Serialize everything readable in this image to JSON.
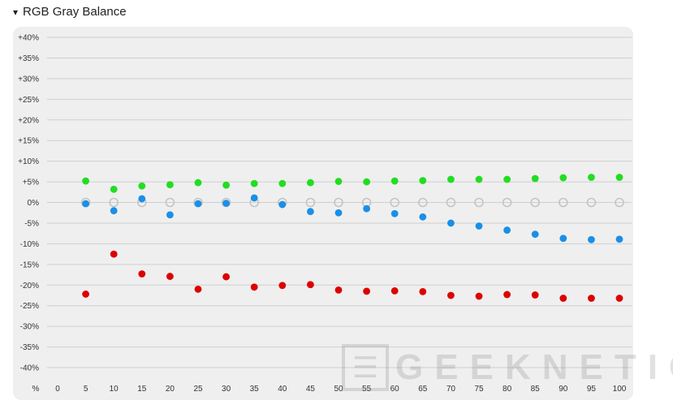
{
  "section": {
    "caret": "▾",
    "title": "RGB Gray Balance"
  },
  "colors": {
    "panel": "#efefef",
    "grid": "#cfcfcf",
    "green": "#22dd22",
    "blue": "#1a8fe8",
    "red": "#dd0000",
    "gray_ring": "#c4c4c4"
  },
  "watermark": {
    "box_glyph": "☰",
    "text": "GEEKNETIC"
  },
  "chart_data": {
    "type": "scatter",
    "title": "RGB Gray Balance",
    "xlabel": "%",
    "ylabel": "",
    "x_axis_start_label": "0",
    "x": [
      5,
      10,
      15,
      20,
      25,
      30,
      35,
      40,
      45,
      50,
      55,
      60,
      65,
      70,
      75,
      80,
      85,
      90,
      95,
      100
    ],
    "x_tick_labels": [
      "%",
      "0",
      "5",
      "10",
      "15",
      "20",
      "25",
      "30",
      "35",
      "40",
      "45",
      "50",
      "55",
      "60",
      "65",
      "70",
      "75",
      "80",
      "85",
      "90",
      "95",
      "100"
    ],
    "ylim": [
      -40,
      40
    ],
    "y_ticks": [
      40,
      35,
      30,
      25,
      20,
      15,
      10,
      5,
      0,
      -5,
      -10,
      -15,
      -20,
      -25,
      -30,
      -35,
      -40
    ],
    "y_tick_labels": [
      "+40%",
      "+35%",
      "+30%",
      "+25%",
      "+20%",
      "+15%",
      "+10%",
      "+5%",
      "0%",
      "-5%",
      "-10%",
      "-15%",
      "-20%",
      "-25%",
      "-30%",
      "-35%",
      "-40%"
    ],
    "grid": true,
    "series": [
      {
        "key": "reference",
        "color": "#c4c4c4",
        "style": "ring",
        "values": [
          0,
          0,
          0,
          0,
          0,
          0,
          0,
          0,
          0,
          0,
          0,
          0,
          0,
          0,
          0,
          0,
          0,
          0,
          0,
          0
        ]
      },
      {
        "key": "green",
        "color": "#22dd22",
        "style": "dot",
        "values": [
          5.2,
          3.2,
          4.0,
          4.3,
          4.8,
          4.2,
          4.6,
          4.6,
          4.8,
          5.1,
          5.0,
          5.2,
          5.3,
          5.6,
          5.6,
          5.6,
          5.8,
          6.0,
          6.1,
          6.1
        ]
      },
      {
        "key": "blue",
        "color": "#1a8fe8",
        "style": "dot",
        "values": [
          -0.3,
          -2.0,
          0.9,
          -3.0,
          -0.3,
          -0.2,
          1.1,
          -0.5,
          -2.2,
          -2.5,
          -1.5,
          -2.7,
          -3.5,
          -5.0,
          -5.7,
          -6.7,
          -7.7,
          -8.7,
          -9.0,
          -8.9
        ]
      },
      {
        "key": "red",
        "color": "#dd0000",
        "style": "dot",
        "values": [
          -22.2,
          -12.5,
          -17.3,
          -17.9,
          -21.0,
          -18.0,
          -20.5,
          -20.1,
          -19.9,
          -21.2,
          -21.5,
          -21.4,
          -21.6,
          -22.5,
          -22.7,
          -22.3,
          -22.4,
          -23.2,
          -23.2,
          -23.2
        ]
      }
    ]
  }
}
